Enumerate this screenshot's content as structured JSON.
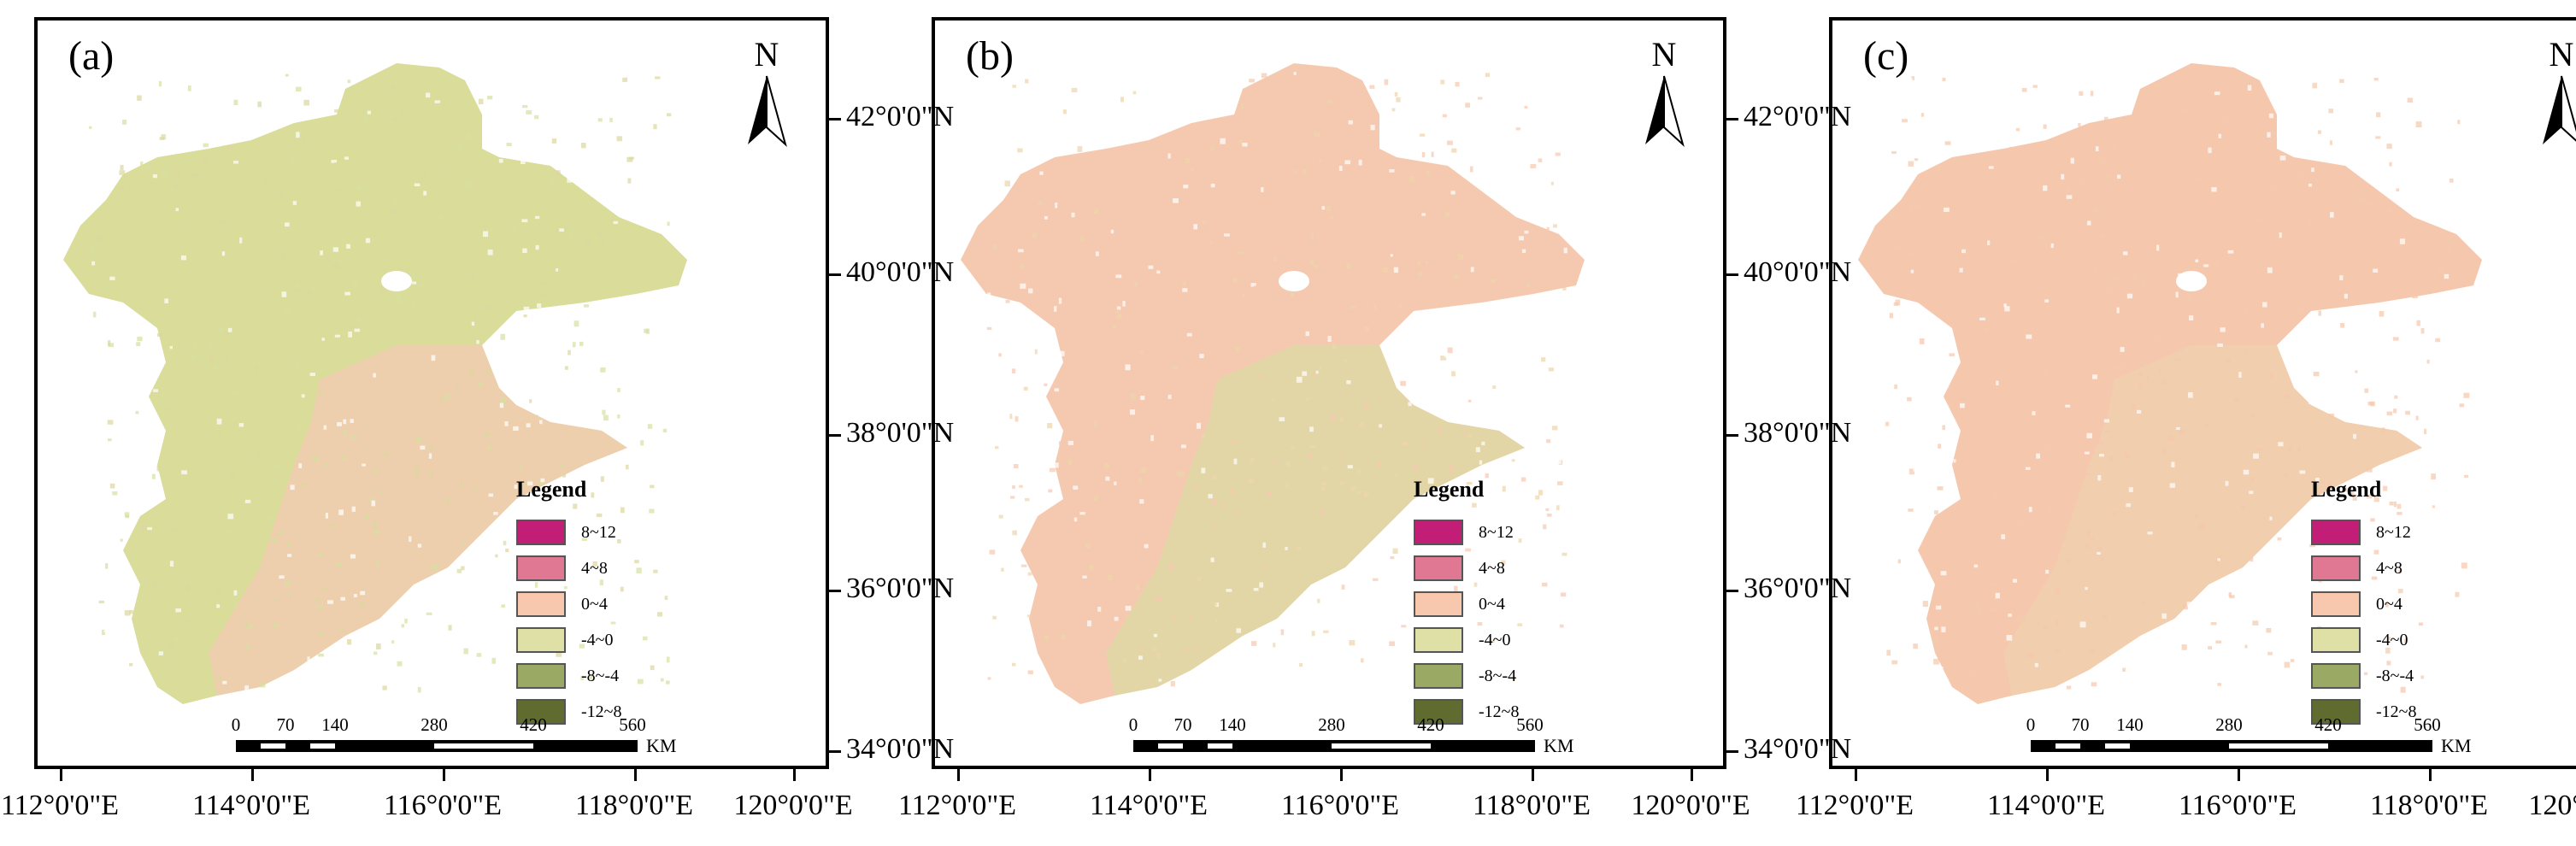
{
  "figure": {
    "panels": [
      {
        "label": "(a)",
        "palette": [
          "#dadc9a",
          "#dcd79e",
          "#d6dfa0"
        ],
        "southern_color": "#f1cdb0"
      },
      {
        "label": "(b)",
        "palette": [
          "#f5c9b0",
          "#ecd6aa",
          "#f5c9b0"
        ],
        "southern_color": "#dfd8a4"
      },
      {
        "label": "(c)",
        "palette": [
          "#f5c8ad",
          "#f5c8ad",
          "#f2cbae"
        ],
        "southern_color": "#f0cfad"
      }
    ],
    "north_arrow": "N",
    "legend": {
      "title": "Legend",
      "items": [
        {
          "label": "8~12",
          "color": "#c21e78"
        },
        {
          "label": "4~8",
          "color": "#e07893"
        },
        {
          "label": "0~4",
          "color": "#f7c8ad"
        },
        {
          "label": "-4~0",
          "color": "#dfe0a6"
        },
        {
          "label": "-8~-4",
          "color": "#9aa964"
        },
        {
          "label": "-12~8",
          "color": "#5f6b2f"
        }
      ]
    },
    "scale_bar": {
      "ticks": [
        "0",
        "70",
        "140",
        "280",
        "420",
        "560"
      ],
      "unit": "KM"
    },
    "latitude_labels": [
      "42°0'0\"N",
      "40°0'0\"N",
      "38°0'0\"N",
      "36°0'0\"N",
      "34°0'0\"N"
    ],
    "longitude_labels": [
      "112°0'0\"E",
      "114°0'0\"E",
      "116°0'0\"E",
      "118°0'0\"E",
      "120°0'0\"E"
    ]
  }
}
